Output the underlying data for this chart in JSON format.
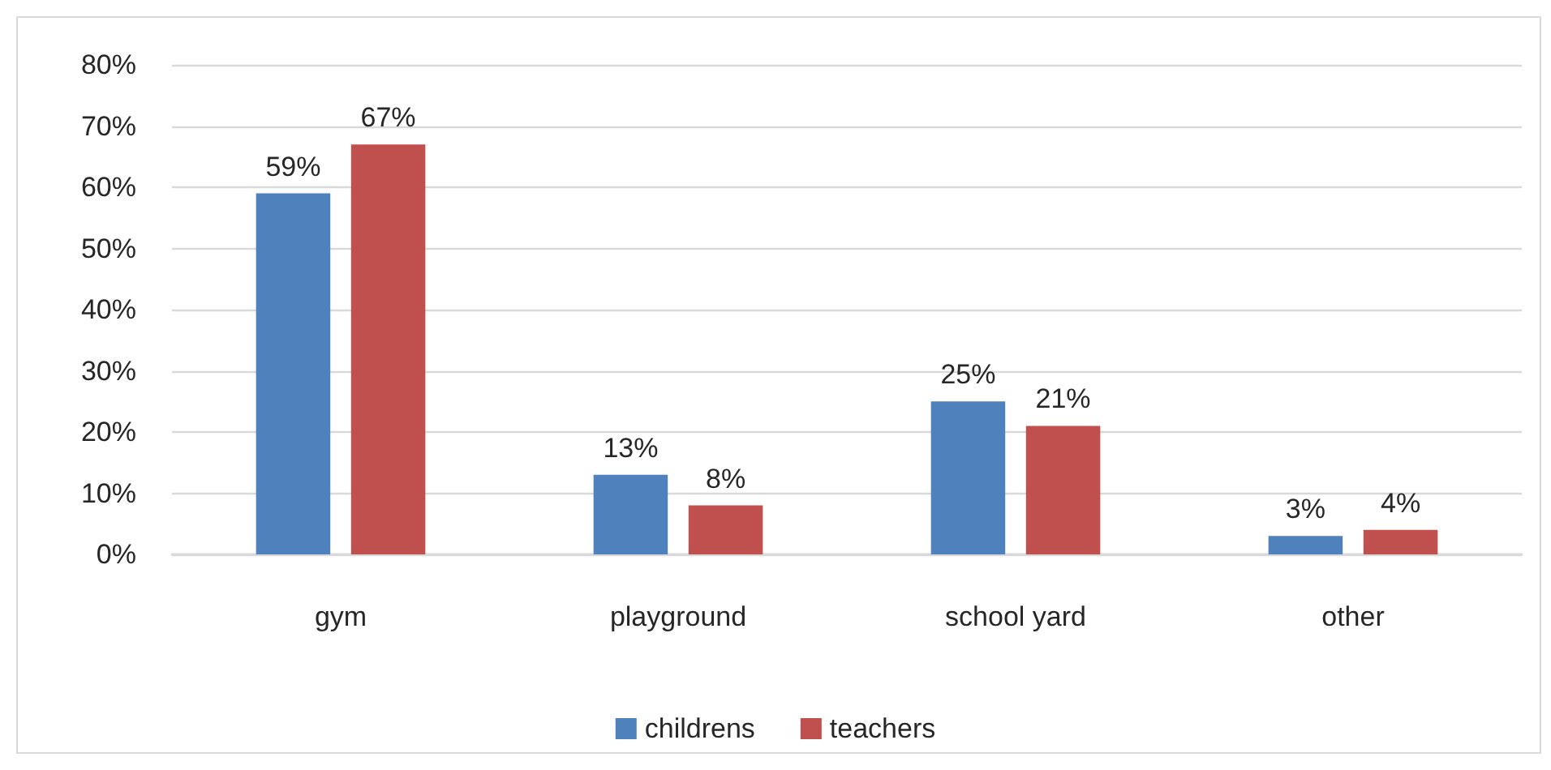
{
  "chart_data": {
    "type": "bar",
    "categories": [
      "gym",
      "playground",
      "school yard",
      "other"
    ],
    "series": [
      {
        "name": "childrens",
        "color": "#4f81bd",
        "values": [
          59,
          13,
          25,
          3
        ],
        "value_labels": [
          "59%",
          "13%",
          "25%",
          "3%"
        ]
      },
      {
        "name": "teachers",
        "color": "#c0504d",
        "values": [
          67,
          8,
          21,
          4
        ],
        "value_labels": [
          "67%",
          "8%",
          "21%",
          "4%"
        ]
      }
    ],
    "ylim": [
      0,
      80
    ],
    "yticks": [
      {
        "value": 0,
        "label": "0%"
      },
      {
        "value": 10,
        "label": "10%"
      },
      {
        "value": 20,
        "label": "20%"
      },
      {
        "value": 30,
        "label": "30%"
      },
      {
        "value": 40,
        "label": "40%"
      },
      {
        "value": 50,
        "label": "50%"
      },
      {
        "value": 60,
        "label": "60%"
      },
      {
        "value": 70,
        "label": "70%"
      },
      {
        "value": 80,
        "label": "80%"
      }
    ],
    "grid": "y",
    "legend": "bottom"
  }
}
